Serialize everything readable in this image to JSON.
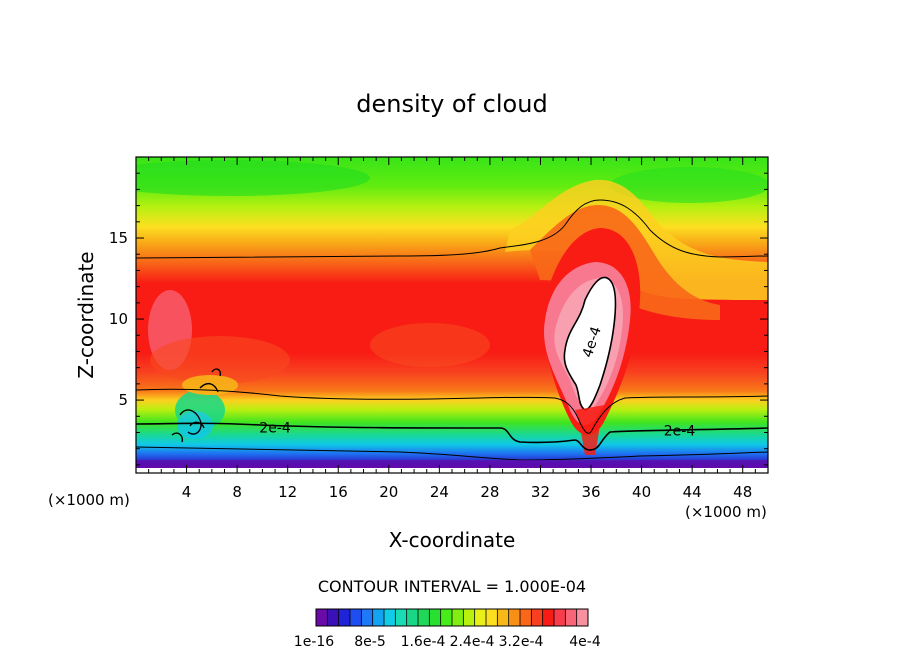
{
  "chart_data": {
    "type": "heatmap",
    "title": "density of cloud",
    "xlabel": "X-coordinate",
    "ylabel": "Z-coordinate",
    "x_unit_left": "(×1000 m)",
    "x_unit_right": "(×1000 m)",
    "xlim": [
      0,
      50
    ],
    "ylim": [
      0.5,
      20
    ],
    "xticks": [
      4,
      8,
      12,
      16,
      20,
      24,
      28,
      32,
      36,
      40,
      44,
      48
    ],
    "yticks": [
      5,
      10,
      15
    ],
    "contour_interval_text": "CONTOUR INTERVAL = 1.000E-04",
    "contour_labels": [
      {
        "text": "2e-4",
        "x": 11,
        "z": 3.0
      },
      {
        "text": "2e-4",
        "x": 43,
        "z": 2.8
      },
      {
        "text": "4e-4",
        "x": 36.4,
        "z": 8.5
      }
    ],
    "colorbar": {
      "labels": [
        "1e-16",
        "8e-5",
        "1.6e-4",
        "2.4e-4",
        "3.2e-4",
        "4e-4"
      ],
      "colors": [
        "#6a0aa8",
        "#3a10b8",
        "#1f24d8",
        "#1e4ef0",
        "#1e78f8",
        "#12a4f0",
        "#10cce6",
        "#18dcb4",
        "#18d888",
        "#20d858",
        "#28e030",
        "#48ec18",
        "#80ee10",
        "#b8f010",
        "#e8f018",
        "#fce020",
        "#f8b818",
        "#f89018",
        "#f86818",
        "#f84020",
        "#f81c14",
        "#f83c4c",
        "#f86478",
        "#f890a0"
      ],
      "white": "#ffffff"
    }
  }
}
